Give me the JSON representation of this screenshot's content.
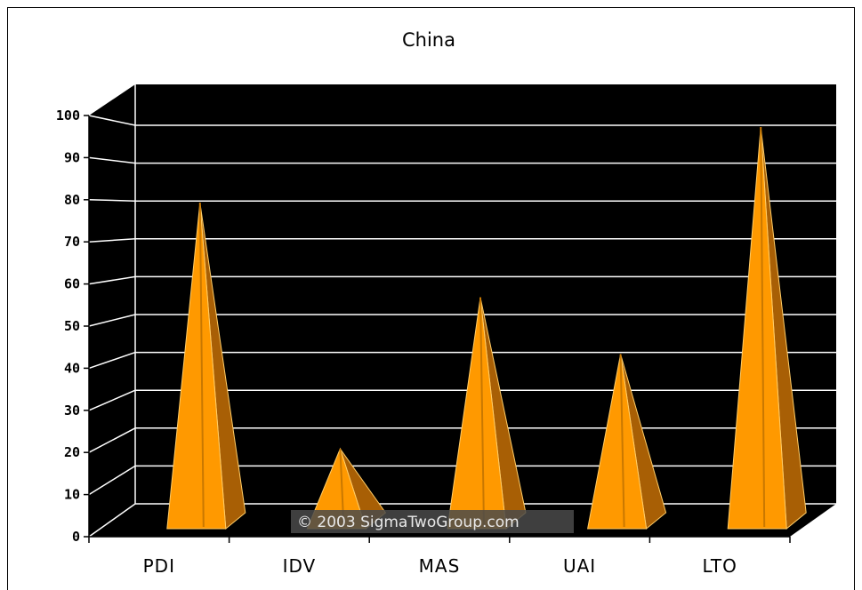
{
  "chart_data": {
    "type": "bar",
    "title": "China",
    "categories": [
      "PDI",
      "IDV",
      "MAS",
      "UAI",
      "LTO"
    ],
    "values": [
      80,
      15,
      55,
      40,
      100
    ],
    "ylim": [
      0,
      100
    ],
    "yticks": [
      "0",
      "10",
      "20",
      "30",
      "40",
      "50",
      "60",
      "70",
      "80",
      "90",
      "100"
    ],
    "xlabel": "",
    "ylabel": "",
    "grid": true,
    "legend": "none",
    "colors": {
      "background": "#000000",
      "gridline": "#ffffff",
      "bar_front": "#ff9900",
      "bar_side": "#a85f05",
      "bar_outline": "#ffcc66"
    },
    "watermark": "© 2003 SigmaTwoGroup.com"
  }
}
